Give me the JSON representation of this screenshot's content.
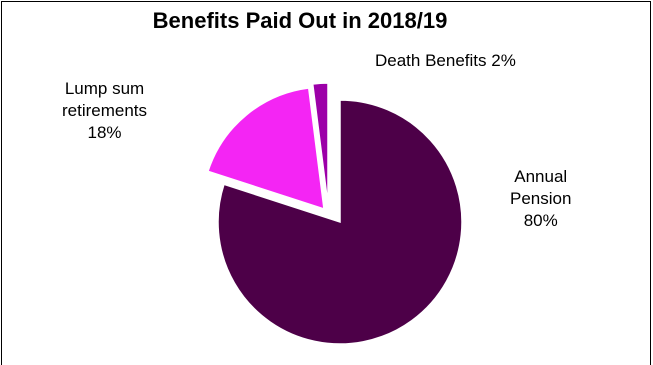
{
  "chart_data": {
    "type": "pie",
    "title": "Benefits Paid Out in 2018/19",
    "slices": [
      {
        "label": "Annual Pension",
        "label_lines": [
          "Annual",
          "Pension",
          "80%"
        ],
        "value": 80,
        "color": "#4d0048"
      },
      {
        "label": "Lump sum retirements",
        "label_lines": [
          "Lump sum",
          "retirements",
          "18%"
        ],
        "value": 18,
        "color": "#f425f4"
      },
      {
        "label": "Death Benefits",
        "label_lines": [
          "Death Benefits 2%"
        ],
        "value": 2,
        "color": "#9c00a8"
      }
    ],
    "legend": "none",
    "exploded": true
  }
}
